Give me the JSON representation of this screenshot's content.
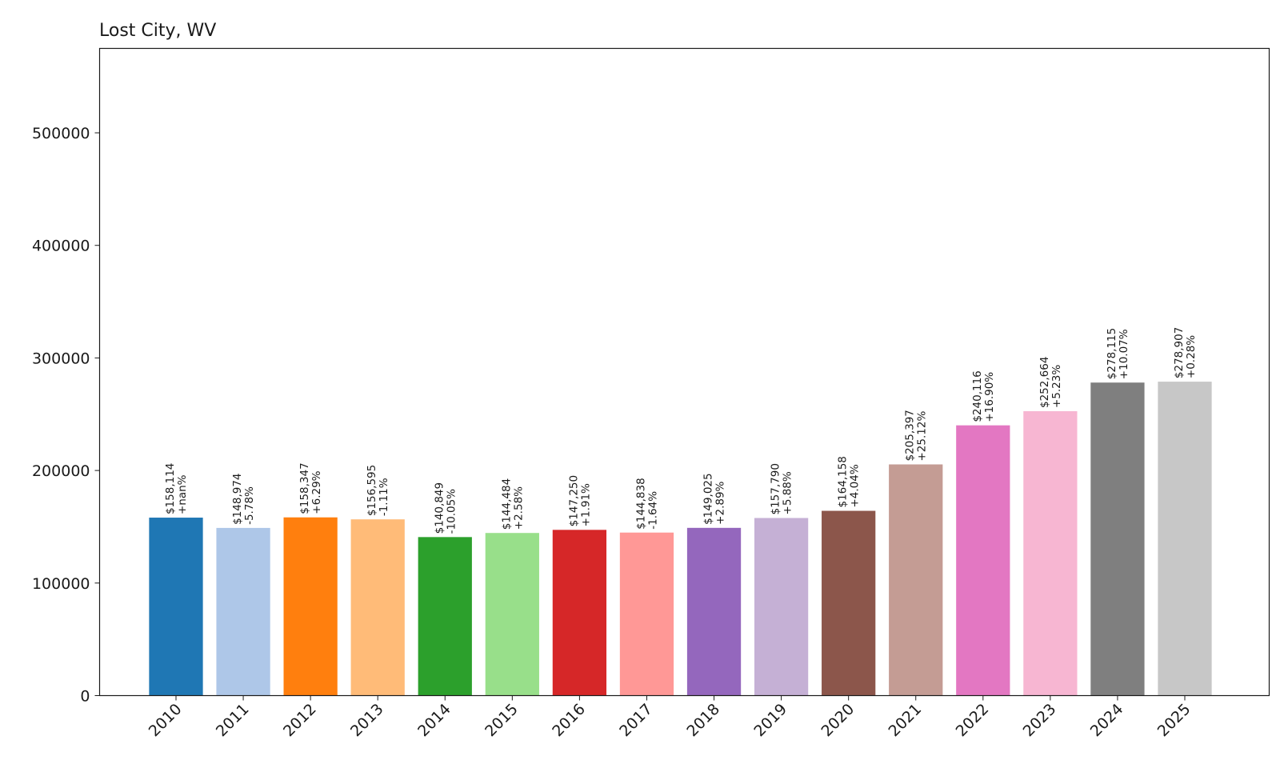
{
  "chart_data": {
    "type": "bar",
    "title": "Lost City, WV",
    "xlabel": "",
    "ylabel": "",
    "ylim": [
      0,
      575000
    ],
    "yticks": [
      0,
      100000,
      200000,
      300000,
      400000,
      500000
    ],
    "grid": false,
    "categories": [
      "2010",
      "2011",
      "2012",
      "2013",
      "2014",
      "2015",
      "2016",
      "2017",
      "2018",
      "2019",
      "2020",
      "2021",
      "2022",
      "2023",
      "2024",
      "2025"
    ],
    "values": [
      158114,
      148974,
      158347,
      156595,
      140849,
      144484,
      147250,
      144838,
      149025,
      157790,
      164158,
      205397,
      240116,
      252664,
      278115,
      278907
    ],
    "value_labels": [
      "$158,114",
      "$148,974",
      "$158,347",
      "$156,595",
      "$140,849",
      "$144,484",
      "$147,250",
      "$144,838",
      "$149,025",
      "$157,790",
      "$164,158",
      "$205,397",
      "$240,116",
      "$252,664",
      "$278,115",
      "$278,907"
    ],
    "change_labels": [
      "+nan%",
      "-5.78%",
      "+6.29%",
      "-1.11%",
      "-10.05%",
      "+2.58%",
      "+1.91%",
      "-1.64%",
      "+2.89%",
      "+5.88%",
      "+4.04%",
      "+25.12%",
      "+16.90%",
      "+5.23%",
      "+10.07%",
      "+0.28%"
    ],
    "colors": [
      "#1f77b4",
      "#aec7e8",
      "#ff7f0e",
      "#ffbb78",
      "#2ca02c",
      "#98df8a",
      "#d62728",
      "#ff9896",
      "#9467bd",
      "#c5b0d5",
      "#8c564b",
      "#c49c94",
      "#e377c2",
      "#f7b6d2",
      "#7f7f7f",
      "#c7c7c7"
    ]
  }
}
